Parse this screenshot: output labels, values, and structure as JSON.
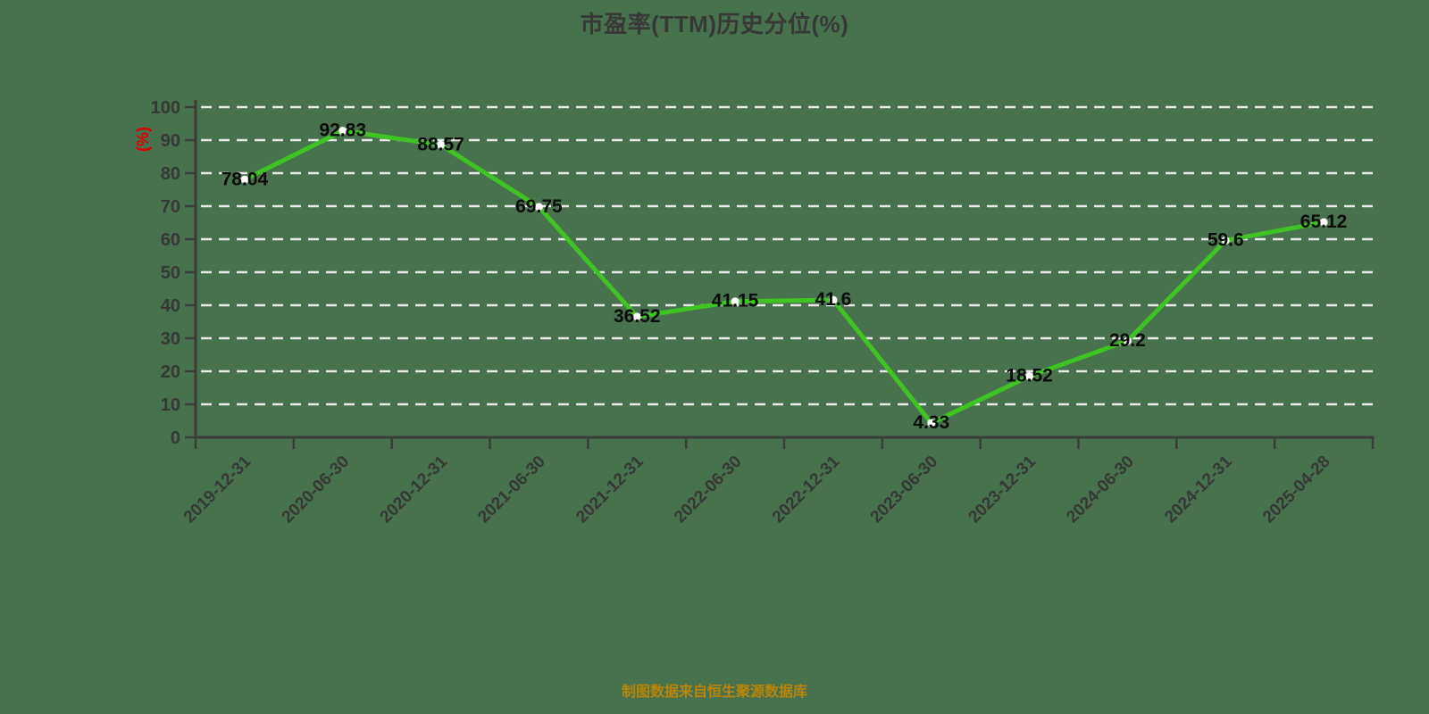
{
  "title": "市盈率(TTM)历史分位(%)",
  "y_axis_name": "(%)",
  "source_note": "制图数据来自恒生聚源数据库",
  "colors": {
    "background": "#48714e",
    "line": "#3fc424",
    "marker_fill": "#ffffff",
    "grid": "#e9e9e9",
    "axis": "#3c3c3c",
    "tick_label": "#373737",
    "data_label": "#0b0b0b",
    "title": "#383838",
    "y_axis_name": "#dc0000",
    "source_note": "#ba8609"
  },
  "chart_data": {
    "type": "line",
    "title": "市盈率(TTM)历史分位(%)",
    "categories": [
      "2019-12-31",
      "2020-06-30",
      "2020-12-31",
      "2021-06-30",
      "2021-12-31",
      "2022-06-30",
      "2022-12-31",
      "2023-06-30",
      "2023-12-31",
      "2024-06-30",
      "2024-12-31",
      "2025-04-28"
    ],
    "values": [
      78.04,
      92.83,
      88.57,
      69.75,
      36.52,
      41.15,
      41.6,
      4.33,
      18.52,
      29.2,
      59.6,
      65.12
    ],
    "xlabel": "",
    "ylabel": "(%)",
    "ylim": [
      0,
      100
    ],
    "y_tick_interval": 10,
    "y_tick_labels": [
      "0",
      "10",
      "20",
      "30",
      "40",
      "50",
      "60",
      "70",
      "80",
      "90",
      "100"
    ],
    "grid": "horizontal dashed white lines, on",
    "legend": "none",
    "point_labels": "values shown centered on each point",
    "x_label_rotation_deg": 45,
    "source_note": "制图数据来自恒生聚源数据库"
  }
}
